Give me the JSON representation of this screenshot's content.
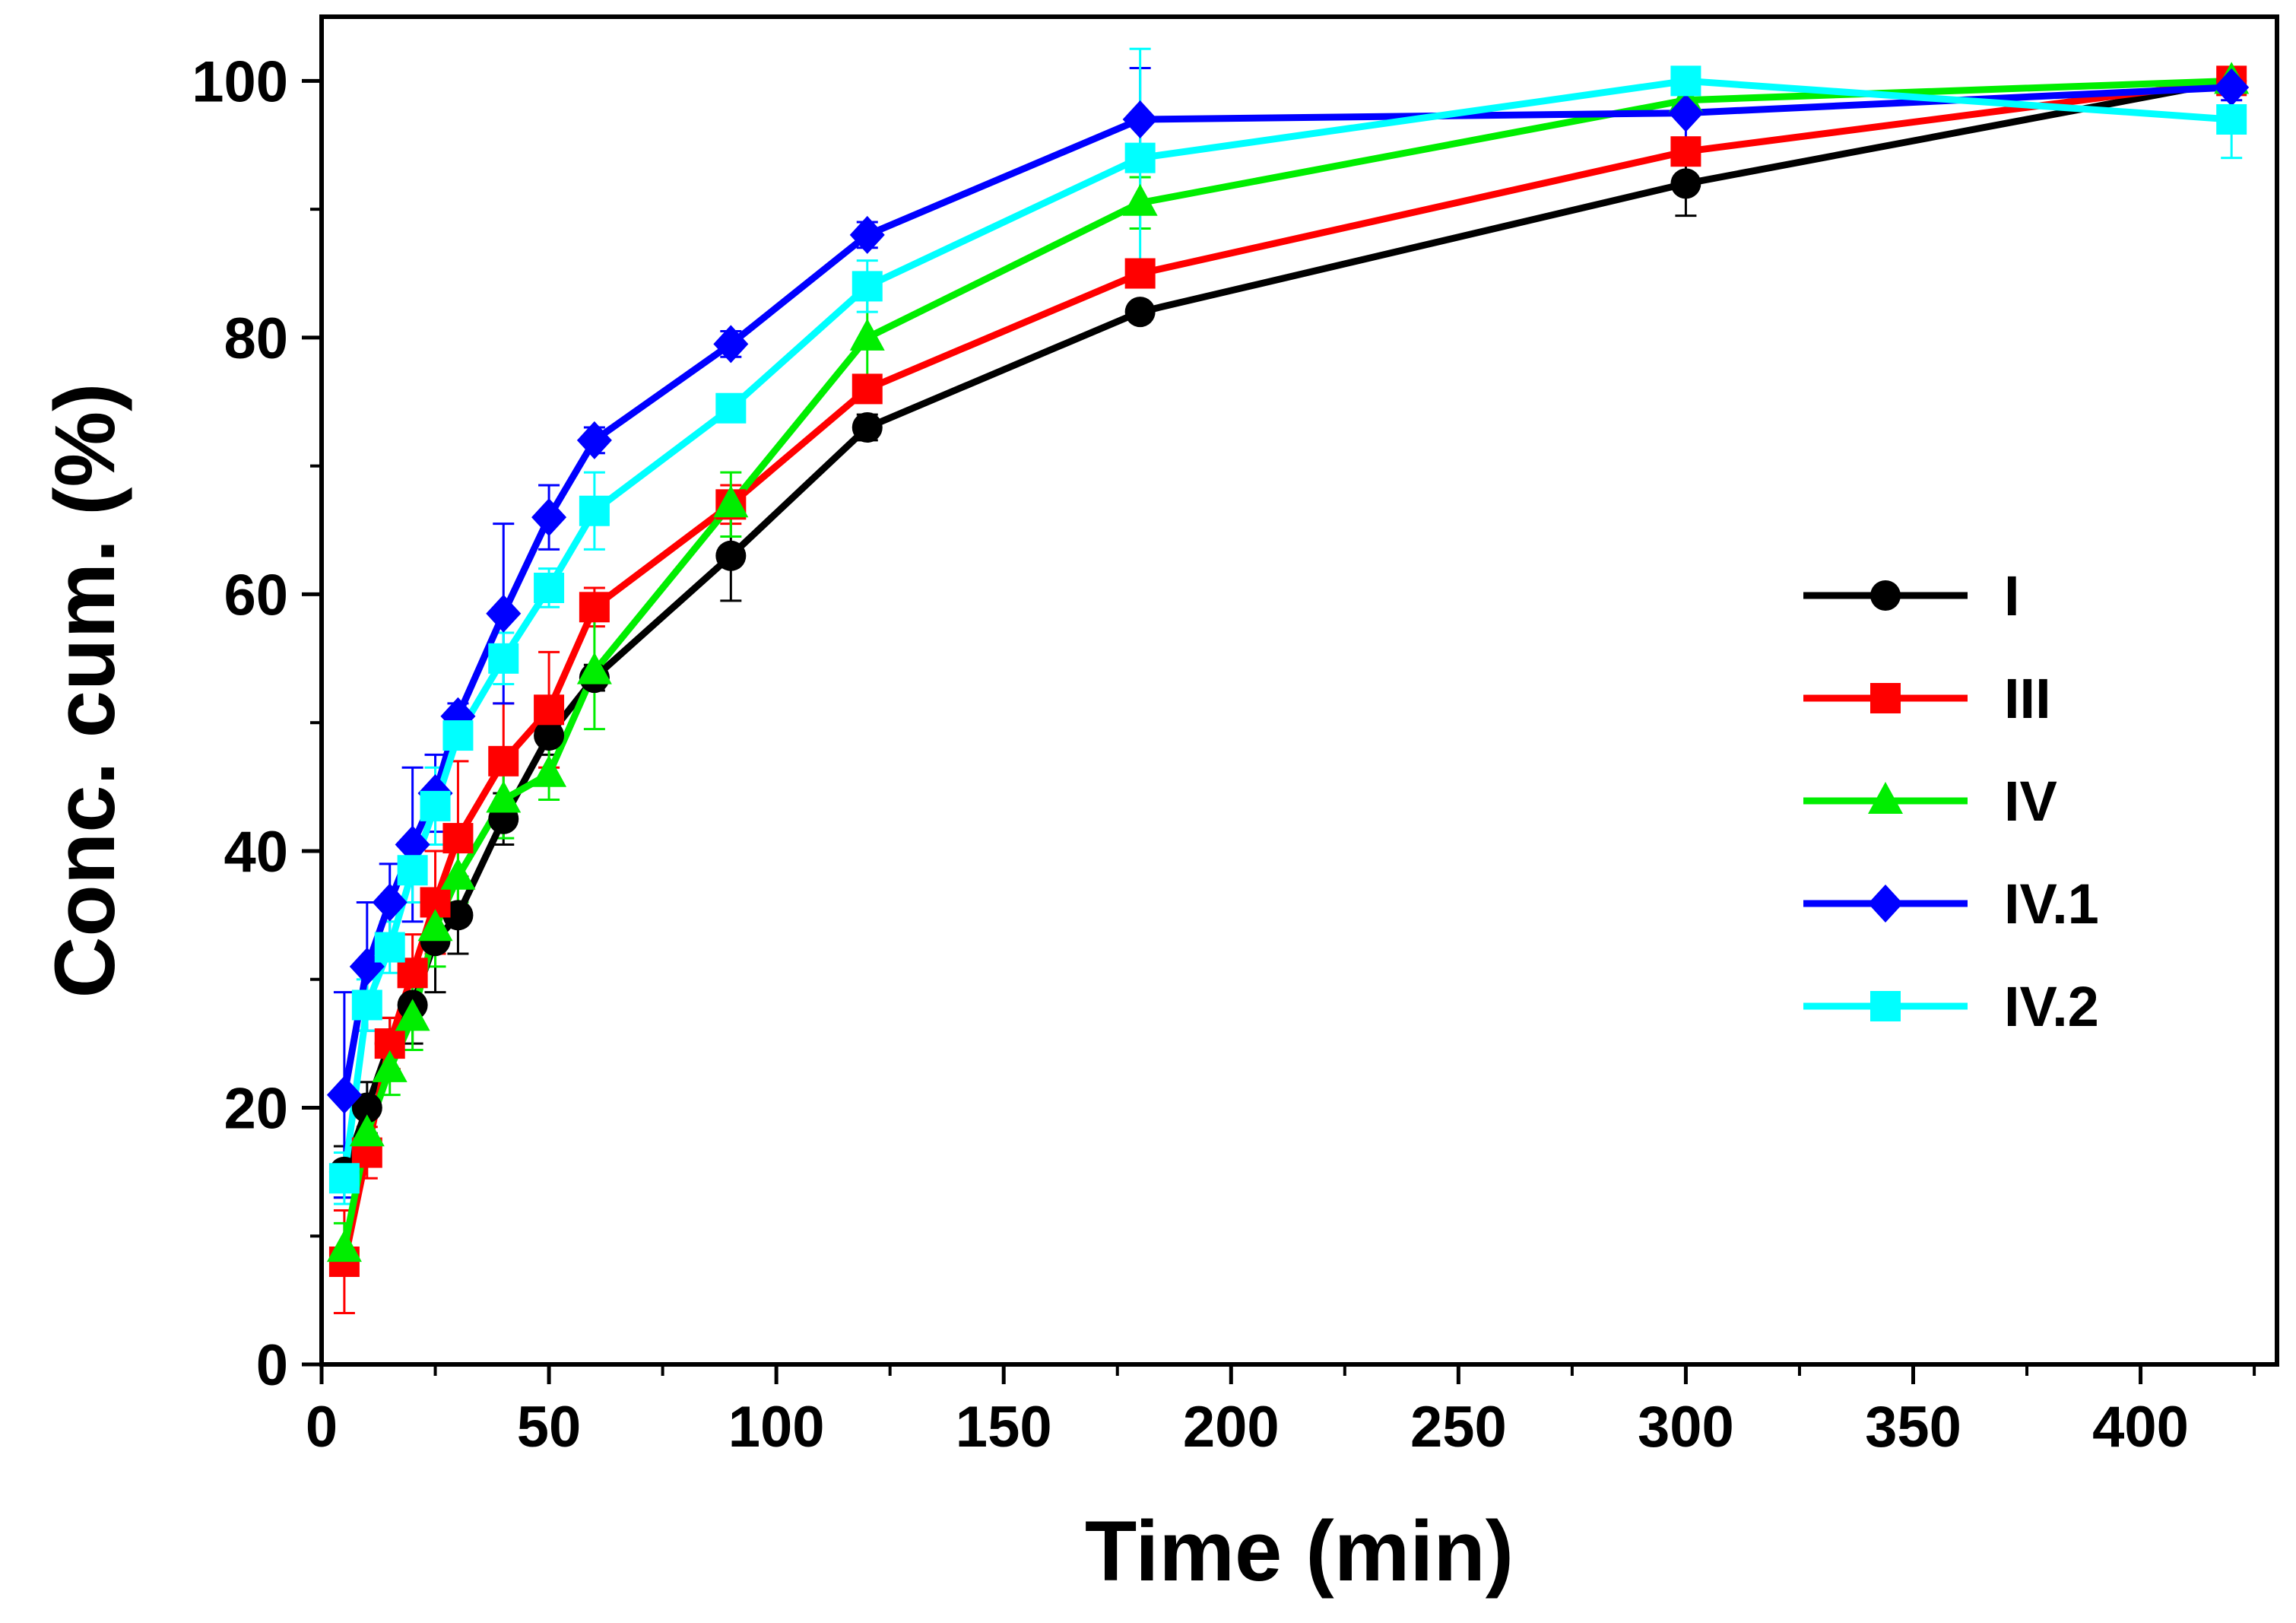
{
  "chart_data": {
    "type": "line",
    "title": "",
    "xlabel": "Time (min)",
    "ylabel": "Conc. cum. (%)",
    "xlim": [
      0,
      430
    ],
    "ylim": [
      0,
      105
    ],
    "xticks": [
      0,
      50,
      100,
      150,
      200,
      250,
      300,
      350,
      400
    ],
    "xtick_labels": [
      "0",
      "50",
      "100",
      "150",
      "200",
      "250",
      "300",
      "350",
      "400"
    ],
    "yticks": [
      0,
      20,
      40,
      60,
      80,
      100
    ],
    "ytick_labels": [
      "0",
      "20",
      "40",
      "60",
      "80",
      "100"
    ],
    "grid": false,
    "legend_position": "center-right",
    "x": [
      5,
      10,
      15,
      20,
      25,
      30,
      40,
      50,
      60,
      90,
      120,
      180,
      300,
      420
    ],
    "series": [
      {
        "name": "I",
        "color": "#000000",
        "marker": "circle",
        "values": [
          15,
          20,
          25,
          28,
          33,
          35,
          42.5,
          49,
          53.5,
          63,
          73,
          82,
          92,
          100
        ],
        "errors": [
          2,
          2,
          2,
          3,
          4,
          3,
          2,
          1.5,
          1,
          3.5,
          1,
          0.5,
          2.5,
          0.5
        ]
      },
      {
        "name": "III",
        "color": "#ff0000",
        "marker": "square",
        "values": [
          8,
          16.5,
          25,
          30.5,
          36,
          41,
          47,
          51,
          59,
          67,
          76,
          85,
          94.5,
          100
        ],
        "errors": [
          4,
          2,
          2,
          3,
          4,
          6,
          4.5,
          4.5,
          1.5,
          1.5,
          1,
          1,
          1,
          0.5
        ]
      },
      {
        "name": "IV",
        "color": "#00ee00",
        "marker": "triangle",
        "values": [
          9,
          18,
          23,
          27,
          34,
          38,
          44,
          46,
          54,
          67,
          80,
          90.5,
          98.5,
          100
        ],
        "errors": [
          2,
          2,
          2,
          2.5,
          3,
          2,
          3,
          2,
          4.5,
          2.5,
          3,
          2,
          1.5,
          0.5
        ]
      },
      {
        "name": "IV.1",
        "color": "#0000ff",
        "marker": "diamond",
        "values": [
          21,
          31,
          36,
          40.5,
          44.5,
          50.5,
          58.5,
          66,
          72,
          79.5,
          88,
          97,
          97.5,
          99.5
        ],
        "errors": [
          8,
          5,
          3,
          6,
          3,
          1,
          7,
          2.5,
          1,
          1,
          1,
          4,
          2.5,
          1
        ]
      },
      {
        "name": "IV.2",
        "color": "#00ffff",
        "marker": "square",
        "values": [
          14.5,
          28,
          32.5,
          38.5,
          43.5,
          49,
          55,
          60.5,
          66.5,
          74.5,
          84,
          94,
          100,
          97
        ],
        "errors": [
          2,
          2,
          2,
          2.5,
          3,
          1,
          2,
          1.5,
          3,
          1,
          2,
          8.5,
          0.5,
          3
        ]
      }
    ]
  }
}
